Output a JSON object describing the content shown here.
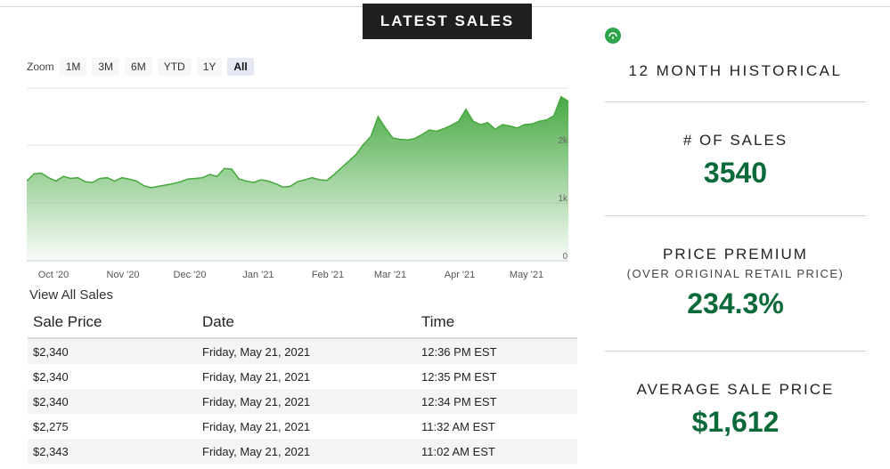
{
  "latest_sales_tab": "LATEST SALES",
  "zoom": {
    "label": "Zoom",
    "options": [
      "1M",
      "3M",
      "6M",
      "YTD",
      "1Y",
      "All"
    ],
    "selected": "All"
  },
  "chart_data": {
    "type": "area",
    "x_labels": [
      "Oct '20",
      "Nov '20",
      "Dec '20",
      "Jan '21",
      "Feb '21",
      "Mar '21",
      "Apr '21",
      "May '21"
    ],
    "y_tick_labels": [
      "0",
      "1k",
      "2k"
    ],
    "ylim": [
      0,
      2600
    ],
    "grid": true,
    "color": "#4caf3f",
    "series": [
      {
        "values": [
          1200,
          1310,
          1320,
          1250,
          1200,
          1270,
          1240,
          1250,
          1190,
          1180,
          1240,
          1250,
          1200,
          1250,
          1230,
          1200,
          1130,
          1100,
          1120,
          1140,
          1160,
          1190,
          1230,
          1240,
          1250,
          1300,
          1270,
          1390,
          1380,
          1230,
          1200,
          1180,
          1220,
          1200,
          1160,
          1110,
          1120,
          1190,
          1220,
          1250,
          1220,
          1210,
          1300,
          1400,
          1500,
          1600,
          1750,
          1870,
          2170,
          2000,
          1850,
          1830,
          1820,
          1840,
          1900,
          1970,
          1950,
          1990,
          2040,
          2100,
          2280,
          2100,
          2050,
          2080,
          1980,
          2050,
          2030,
          2000,
          2050,
          2060,
          2100,
          2120,
          2180,
          2470,
          2400
        ]
      }
    ]
  },
  "view_all_label": "View All Sales",
  "table": {
    "headers": [
      "Sale Price",
      "Date",
      "Time"
    ],
    "rows": [
      [
        "$2,340",
        "Friday, May 21, 2021",
        "12:36 PM EST"
      ],
      [
        "$2,340",
        "Friday, May 21, 2021",
        "12:35 PM EST"
      ],
      [
        "$2,340",
        "Friday, May 21, 2021",
        "12:34 PM EST"
      ],
      [
        "$2,275",
        "Friday, May 21, 2021",
        "11:32 AM EST"
      ],
      [
        "$2,343",
        "Friday, May 21, 2021",
        "11:02 AM EST"
      ]
    ]
  },
  "historical": {
    "title": "12 MONTH HISTORICAL",
    "num_sales_label": "# OF SALES",
    "num_sales_value": "3540",
    "premium_label": "PRICE PREMIUM",
    "premium_sub": "(OVER ORIGINAL RETAIL PRICE)",
    "premium_value": "234.3%",
    "avg_label": "AVERAGE SALE PRICE",
    "avg_value": "$1,612"
  },
  "icons": {
    "history": "history-icon"
  }
}
